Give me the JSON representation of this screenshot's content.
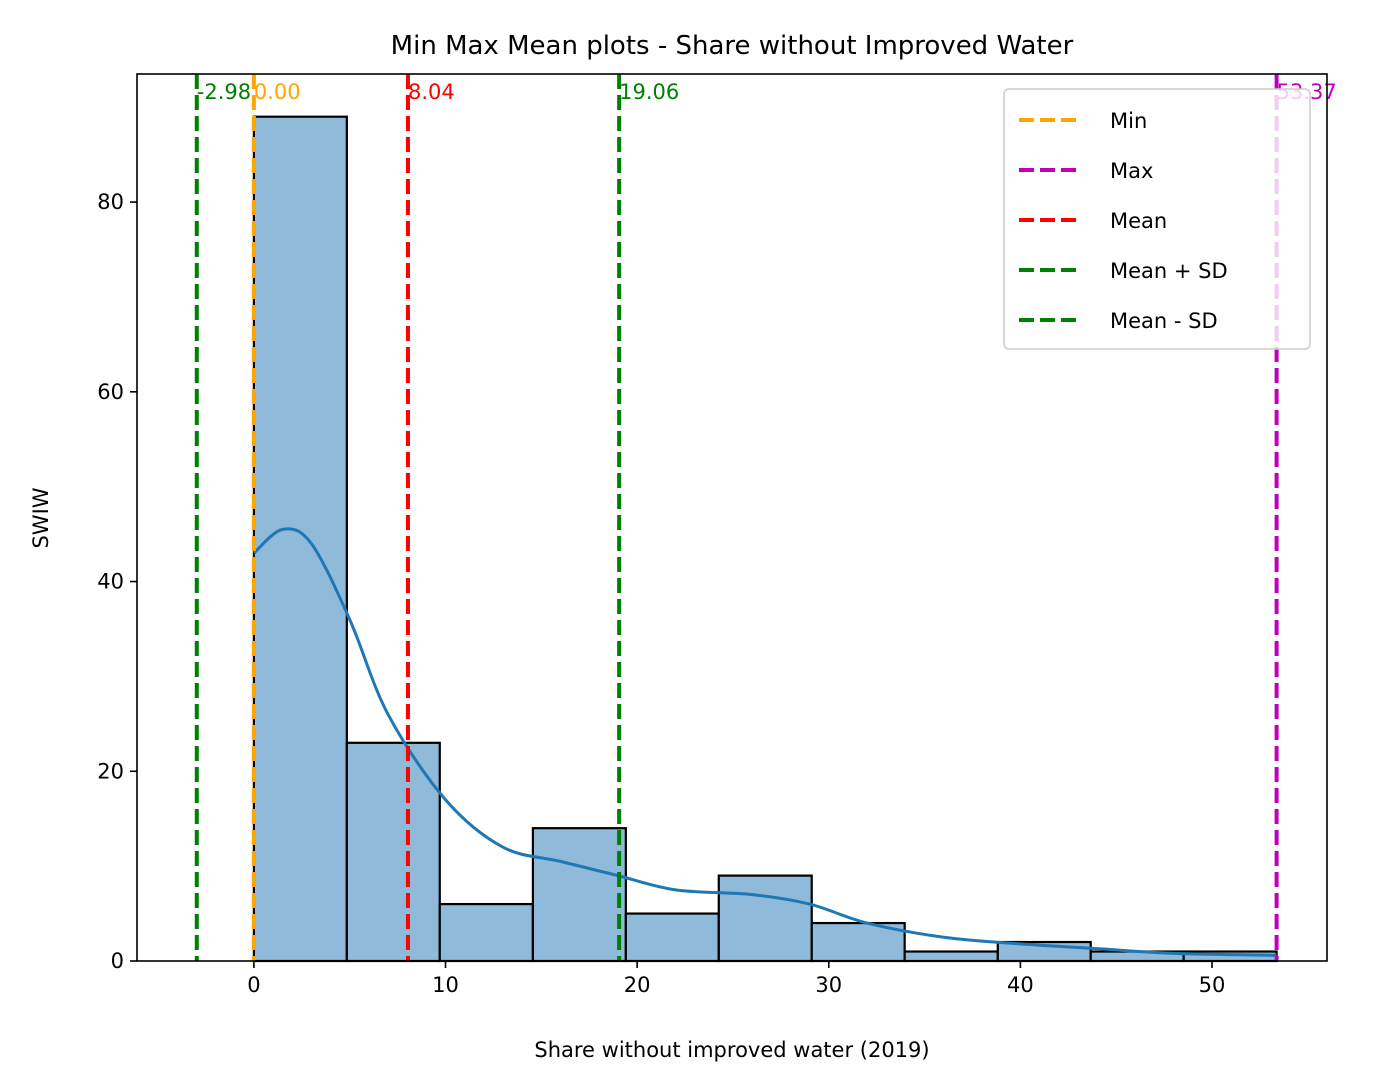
{
  "chart_data": {
    "type": "bar",
    "title": "Min Max Mean plots - Share without Improved Water",
    "xlabel": "Share without improved water (2019)",
    "ylabel": "SWIW",
    "xlim": [
      -6.1,
      56.0
    ],
    "ylim": [
      0,
      93.5
    ],
    "x_ticks": [
      0,
      10,
      20,
      30,
      40,
      50
    ],
    "y_ticks": [
      0,
      20,
      40,
      60,
      80
    ],
    "bin_edges": [
      0.0,
      4.85,
      9.7,
      14.56,
      19.41,
      24.26,
      29.11,
      33.96,
      38.82,
      43.67,
      48.52,
      53.37
    ],
    "counts": [
      89,
      23,
      6,
      14,
      5,
      9,
      4,
      1,
      2,
      1,
      1
    ],
    "bar_color": "#8fbad9",
    "kde": {
      "color": "#1f77b4",
      "x": [
        0,
        1.5,
        3,
        5,
        7,
        10,
        13,
        16,
        19,
        22,
        26,
        29,
        32,
        36,
        40,
        44,
        48,
        53.37
      ],
      "y": [
        43,
        45.5,
        44,
        36,
        26,
        17,
        12,
        10.5,
        9,
        7.5,
        7,
        6,
        4,
        2.5,
        1.8,
        1.3,
        0.8,
        0.6
      ]
    },
    "reference_lines": [
      {
        "name": "Min",
        "x": 0.0,
        "label": "0.00",
        "color": "#ffa500"
      },
      {
        "name": "Max",
        "x": 53.37,
        "label": "53.37",
        "color": "#bf00bf"
      },
      {
        "name": "Mean",
        "x": 8.04,
        "label": "8.04",
        "color": "#ff0000"
      },
      {
        "name": "Mean + SD",
        "x": 19.06,
        "label": "19.06",
        "color": "#008000"
      },
      {
        "name": "Mean - SD",
        "x": -2.98,
        "label": "-2.98",
        "color": "#008000"
      }
    ],
    "legend": {
      "position": "upper-right",
      "entries": [
        {
          "label": "Min",
          "color": "#ffa500"
        },
        {
          "label": "Max",
          "color": "#bf00bf"
        },
        {
          "label": "Mean",
          "color": "#ff0000"
        },
        {
          "label": "Mean + SD",
          "color": "#008000"
        },
        {
          "label": "Mean - SD",
          "color": "#008000"
        }
      ]
    }
  }
}
